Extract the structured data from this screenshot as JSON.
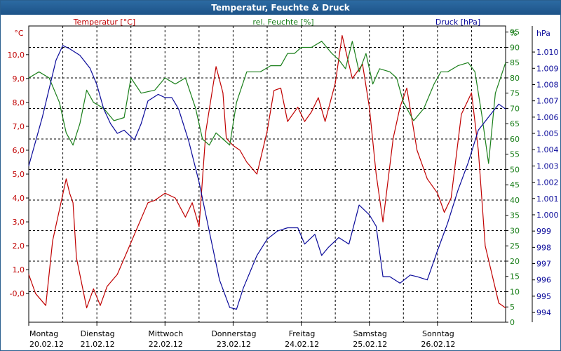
{
  "chart_data": {
    "type": "line",
    "title": "Temperatur, Feuchte & Druck",
    "colors": {
      "temperature": "#c00000",
      "humidity": "#1a7f1a",
      "pressure": "#0a0a9a",
      "grid": "#000000",
      "title_bar": "#1d5388"
    },
    "grid": true,
    "x_labels": [
      {
        "day": "Montag",
        "date": "20.02.12"
      },
      {
        "day": "Dienstag",
        "date": "21.02.12"
      },
      {
        "day": "Mittwoch",
        "date": "22.02.12"
      },
      {
        "day": "Donnerstag",
        "date": "23.02.12"
      },
      {
        "day": "Freitag",
        "date": "24.02.12"
      },
      {
        "day": "Samstag",
        "date": "25.02.12"
      },
      {
        "day": "Sonntag",
        "date": "26.02.12"
      }
    ],
    "xlim": [
      0,
      7
    ],
    "axes": {
      "temperature": {
        "label": "Temperatur [°C]",
        "unit": "°C",
        "ylim": [
          -1.2,
          11.2
        ],
        "ticks": [
          "-0,0",
          "1,0",
          "2,0",
          "3,0",
          "4,0",
          "5,0",
          "6,0",
          "7,0",
          "8,0",
          "9,0",
          "10,0"
        ]
      },
      "humidity": {
        "label": "rel. Feuchte [%]",
        "unit": "%",
        "ylim": [
          0,
          97
        ],
        "ticks": [
          "0",
          "5",
          "10",
          "15",
          "20",
          "25",
          "30",
          "35",
          "40",
          "45",
          "50",
          "55",
          "60",
          "65",
          "70",
          "75",
          "80",
          "85",
          "90",
          "95"
        ]
      },
      "pressure": {
        "label": "Druck [hPa]",
        "unit": "hPa",
        "ylim": [
          993.4,
          1011.6
        ],
        "ticks": [
          "994",
          "995",
          "996",
          "997",
          "998",
          "999",
          "1.000",
          "1.001",
          "1.002",
          "1.003",
          "1.004",
          "1.005",
          "1.006",
          "1.007",
          "1.008",
          "1.009",
          "1.010"
        ]
      }
    },
    "series": [
      {
        "key": "temperature",
        "x": [
          0,
          0.1,
          0.25,
          0.35,
          0.45,
          0.55,
          0.6,
          0.65,
          0.7,
          0.85,
          0.95,
          1.05,
          1.15,
          1.3,
          1.45,
          1.6,
          1.75,
          1.85,
          2,
          2.15,
          2.3,
          2.4,
          2.5,
          2.6,
          2.75,
          2.85,
          2.9,
          3,
          3.1,
          3.2,
          3.35,
          3.5,
          3.6,
          3.7,
          3.8,
          3.95,
          4.05,
          4.15,
          4.25,
          4.35,
          4.5,
          4.6,
          4.75,
          4.9,
          5,
          5.1,
          5.2,
          5.35,
          5.45,
          5.55,
          5.7,
          5.85,
          6,
          6.1,
          6.2,
          6.35,
          6.5,
          6.6,
          6.7,
          6.8,
          6.9,
          7
        ],
        "y": [
          0.8,
          0,
          -0.5,
          2.2,
          3.5,
          4.8,
          4.2,
          3.8,
          1.5,
          -0.6,
          0.2,
          -0.5,
          0.3,
          0.8,
          1.8,
          2.8,
          3.8,
          3.9,
          4.2,
          4.0,
          3.2,
          3.8,
          2.8,
          6.8,
          9.5,
          8.4,
          6.5,
          6.2,
          6.0,
          5.5,
          5.0,
          6.8,
          8.5,
          8.6,
          7.2,
          7.8,
          7.2,
          7.6,
          8.2,
          7.2,
          8.8,
          10.8,
          9.0,
          9.6,
          7.8,
          5.0,
          3.0,
          6.5,
          7.8,
          8.6,
          6.0,
          4.8,
          4.2,
          3.4,
          4.0,
          7.5,
          8.4,
          6.0,
          2.0,
          0.8,
          -0.4,
          -0.6
        ]
      },
      {
        "key": "humidity",
        "x": [
          0,
          0.15,
          0.3,
          0.45,
          0.55,
          0.65,
          0.75,
          0.85,
          0.95,
          1.1,
          1.25,
          1.4,
          1.5,
          1.65,
          1.85,
          2,
          2.15,
          2.3,
          2.45,
          2.55,
          2.65,
          2.75,
          2.85,
          2.95,
          3.05,
          3.2,
          3.3,
          3.4,
          3.55,
          3.7,
          3.8,
          3.9,
          4,
          4.15,
          4.3,
          4.45,
          4.55,
          4.65,
          4.75,
          4.85,
          4.95,
          5.05,
          5.15,
          5.3,
          5.4,
          5.5,
          5.65,
          5.8,
          5.95,
          6.05,
          6.15,
          6.3,
          6.45,
          6.55,
          6.65,
          6.75,
          6.85,
          7
        ],
        "y": [
          80,
          82,
          80,
          72,
          62,
          58,
          65,
          76,
          72,
          70,
          66,
          67,
          80,
          75,
          76,
          80,
          78,
          80,
          70,
          60,
          58,
          62,
          60,
          58,
          72,
          82,
          82,
          82,
          84,
          84,
          88,
          88,
          90,
          90,
          92,
          88,
          86,
          83,
          92,
          82,
          88,
          78,
          83,
          82,
          80,
          72,
          66,
          70,
          78,
          82,
          82,
          84,
          85,
          82,
          68,
          52,
          75,
          85
        ]
      },
      {
        "key": "pressure",
        "x": [
          0,
          0.2,
          0.4,
          0.5,
          0.6,
          0.75,
          0.9,
          1,
          1.1,
          1.2,
          1.3,
          1.4,
          1.55,
          1.65,
          1.75,
          1.9,
          2,
          2.1,
          2.2,
          2.35,
          2.5,
          2.65,
          2.8,
          2.95,
          3.05,
          3.15,
          3.25,
          3.35,
          3.5,
          3.65,
          3.8,
          3.95,
          4.05,
          4.2,
          4.3,
          4.4,
          4.55,
          4.7,
          4.85,
          5,
          5.1,
          5.2,
          5.3,
          5.45,
          5.6,
          5.7,
          5.85,
          6,
          6.15,
          6.3,
          6.45,
          6.6,
          6.75,
          6.9,
          7
        ],
        "y": [
          1003,
          1006,
          1009.5,
          1010.4,
          1010.2,
          1009.8,
          1009,
          1008,
          1006.5,
          1005.6,
          1005,
          1005.2,
          1004.6,
          1005.6,
          1007,
          1007.4,
          1007.2,
          1007.2,
          1006.5,
          1004.5,
          1002,
          999,
          996,
          994.3,
          994.2,
          995.5,
          996.5,
          997.5,
          998.5,
          999,
          999.2,
          999.2,
          998.2,
          998.8,
          997.5,
          998,
          998.6,
          998.2,
          1000.6,
          1000,
          999.3,
          996.2,
          996.2,
          995.8,
          996.3,
          996.2,
          996,
          997.8,
          999.5,
          1001.5,
          1003.2,
          1005.2,
          1006,
          1006.8,
          1006.5
        ]
      }
    ]
  }
}
